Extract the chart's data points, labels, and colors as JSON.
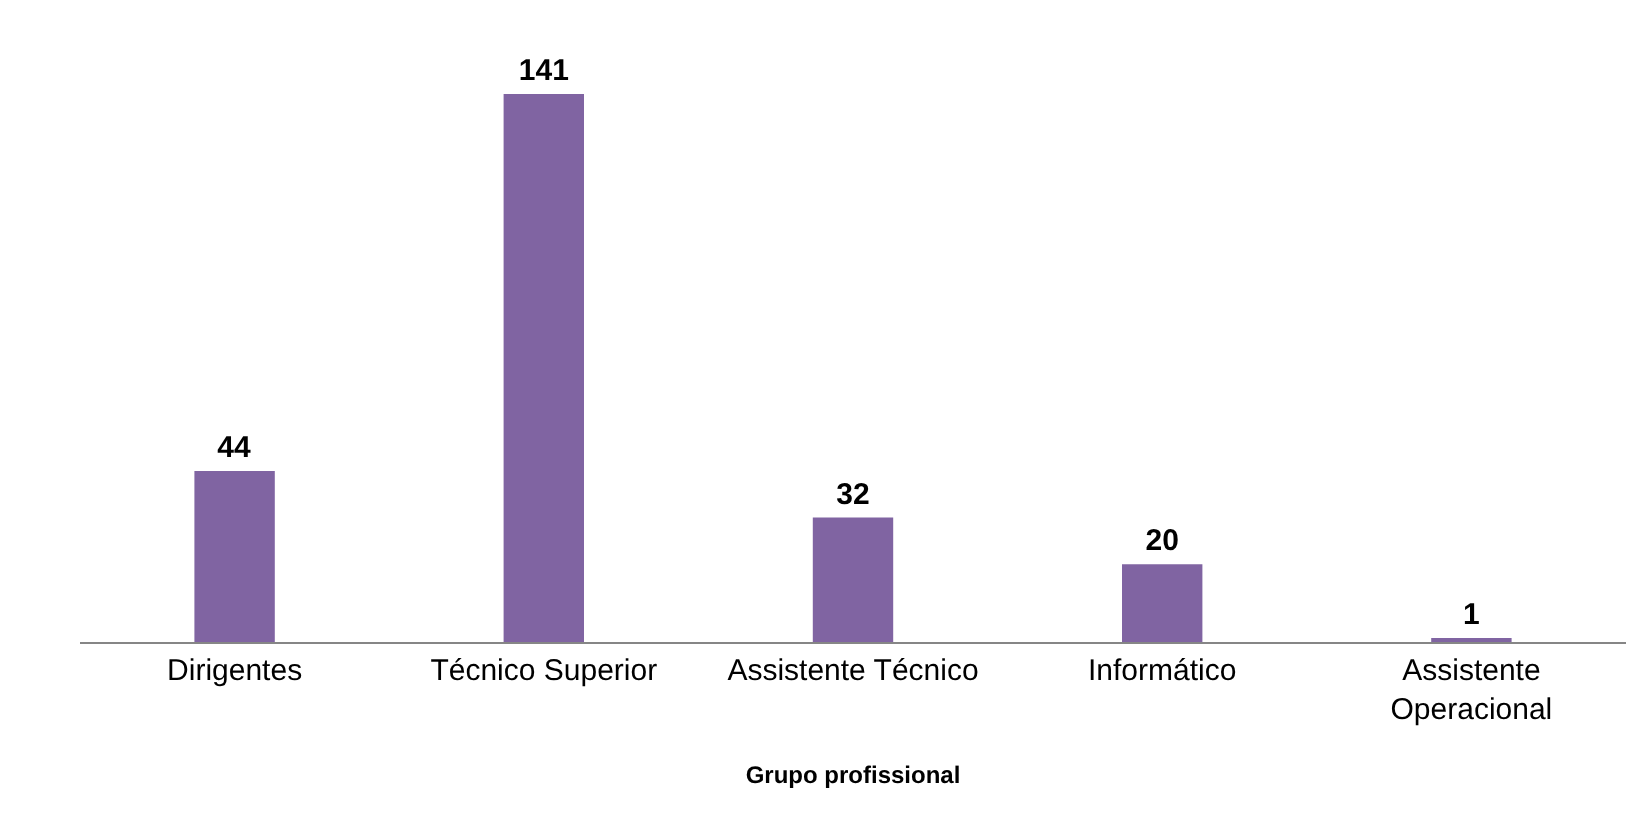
{
  "chart_data": {
    "type": "bar",
    "categories": [
      "Dirigentes",
      "Técnico Superior",
      "Assistente Técnico",
      "Informático",
      "Assistente Operacional"
    ],
    "values": [
      44,
      141,
      32,
      20,
      1
    ],
    "color": "#8064a2",
    "data_labels": true,
    "xlabel": "Grupo profissional"
  }
}
